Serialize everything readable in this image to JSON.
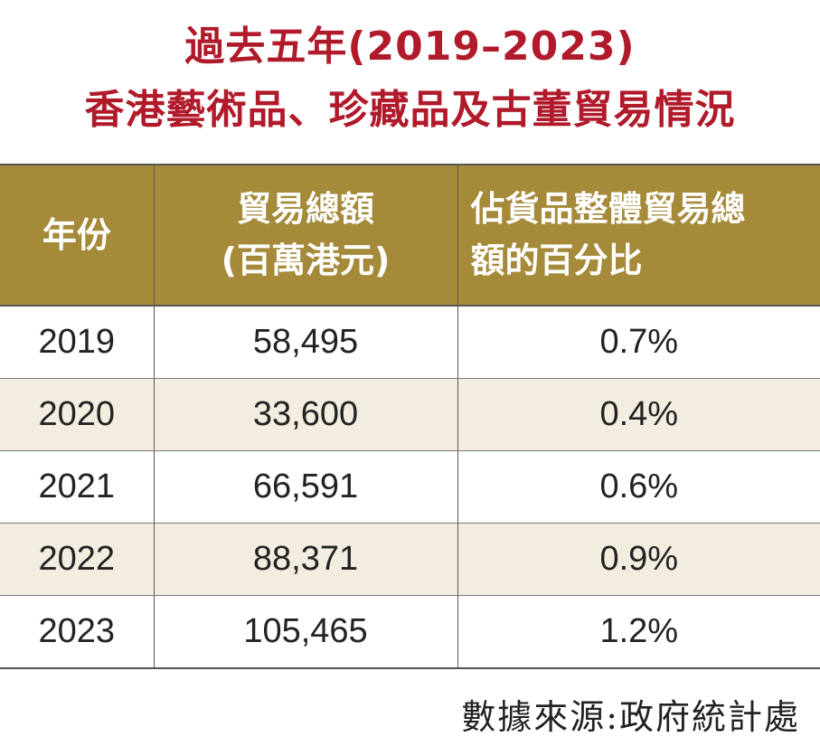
{
  "title": {
    "line1": "過去五年(2019–2023)",
    "line2": "香港藝術品、珍藏品及古董貿易情況"
  },
  "table": {
    "headers": {
      "year": "年份",
      "total_line1": "貿易總額",
      "total_line2": "(百萬港元)",
      "pct_line1": "佔貨品整體貿易總",
      "pct_line2": "額的百分比"
    },
    "rows": [
      {
        "year": "2019",
        "total": "58,495",
        "pct": "0.7%"
      },
      {
        "year": "2020",
        "total": "33,600",
        "pct": "0.4%"
      },
      {
        "year": "2021",
        "total": "66,591",
        "pct": "0.6%"
      },
      {
        "year": "2022",
        "total": "88,371",
        "pct": "0.9%"
      },
      {
        "year": "2023",
        "total": "105,465",
        "pct": "1.2%"
      }
    ]
  },
  "source": "數據來源:政府統計處",
  "colors": {
    "title": "#b01a2a",
    "header_bg": "#a58a3a",
    "alt_row_bg": "#f3ede0"
  }
}
